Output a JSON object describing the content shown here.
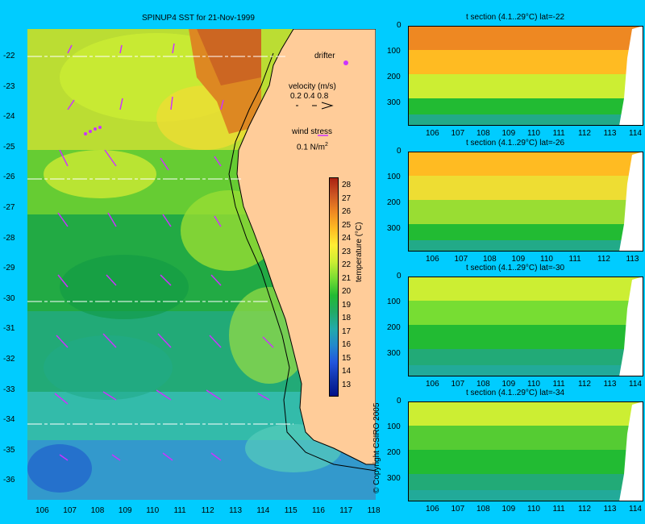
{
  "map": {
    "title": "SPINUP4 SST for 21-Nov-1999",
    "lat_ticks": [
      "-22",
      "-23",
      "-24",
      "-25",
      "-26",
      "-27",
      "-28",
      "-29",
      "-30",
      "-31",
      "-32",
      "-33",
      "-34",
      "-35",
      "-36"
    ],
    "lon_ticks": [
      "106",
      "107",
      "108",
      "109",
      "110",
      "111",
      "112",
      "113",
      "114",
      "115",
      "116",
      "117",
      "118"
    ],
    "drifter_label": "drifter",
    "velocity_label": "velocity (m/s)",
    "velocity_values": "0.2 0.4 0.8",
    "wind_label": "wind stress",
    "wind_value": "0.1 N/m",
    "wind_sup": "2",
    "copyright": "© Copyright CSIRO 2005",
    "colorbar_label": "temperature (°C)",
    "colorbar_ticks": [
      "28",
      "27",
      "26",
      "25",
      "24",
      "23",
      "22",
      "21",
      "20",
      "19",
      "18",
      "17",
      "16",
      "15",
      "14",
      "13"
    ]
  },
  "sections": [
    {
      "title": "t section (4.1..29°C) lat=-22",
      "x_ticks": [
        "106",
        "107",
        "108",
        "109",
        "110",
        "111",
        "112",
        "113",
        "114"
      ],
      "y_ticks": [
        "0",
        "100",
        "200",
        "300"
      ]
    },
    {
      "title": "t section (4.1..29°C) lat=-26",
      "x_ticks": [
        "106",
        "107",
        "108",
        "109",
        "110",
        "111",
        "112",
        "113"
      ],
      "y_ticks": [
        "0",
        "100",
        "200",
        "300"
      ]
    },
    {
      "title": "t section (4.1..29°C) lat=-30",
      "x_ticks": [
        "106",
        "107",
        "108",
        "109",
        "110",
        "111",
        "112",
        "113",
        "114"
      ],
      "y_ticks": [
        "0",
        "100",
        "200",
        "300"
      ]
    },
    {
      "title": "t section (4.1..29°C) lat=-34",
      "x_ticks": [
        "106",
        "107",
        "108",
        "109",
        "110",
        "111",
        "112",
        "113",
        "114"
      ],
      "y_ticks": [
        "0",
        "100",
        "200",
        "300"
      ]
    }
  ],
  "colors": {
    "background": "#00ccff",
    "land": "#ffcc99",
    "arrow": "#cc33ff"
  }
}
